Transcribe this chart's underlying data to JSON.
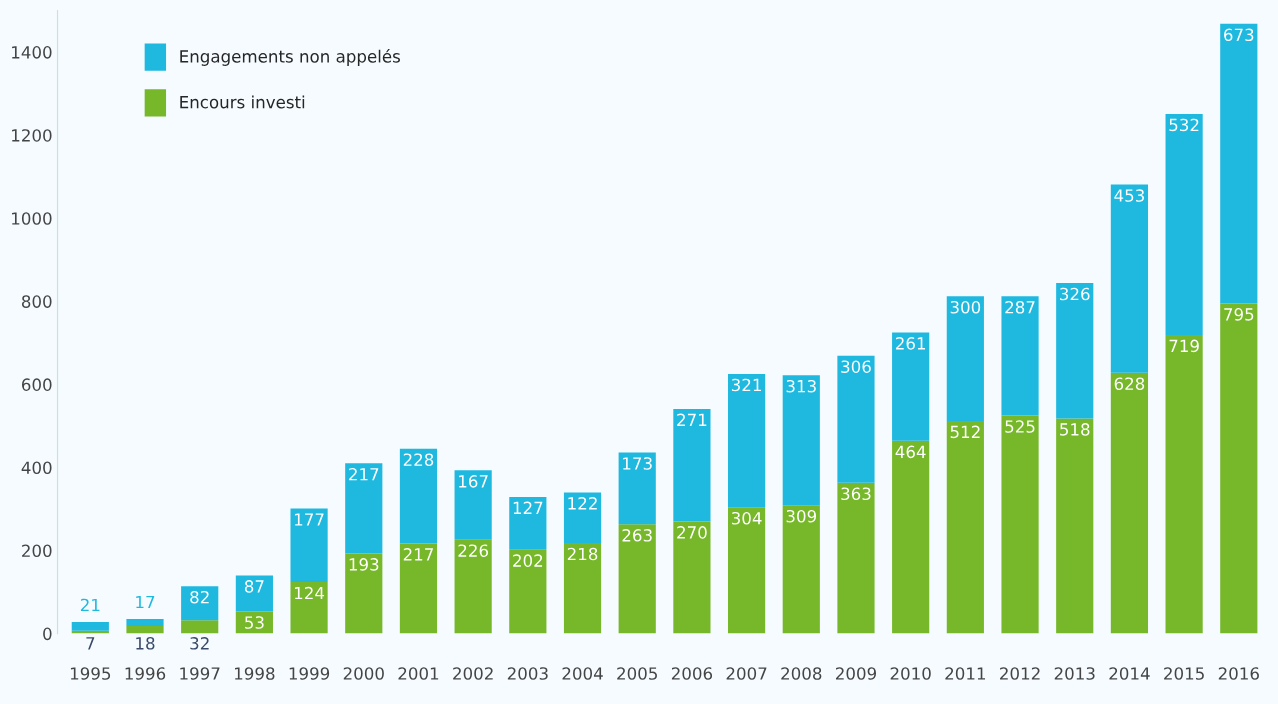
{
  "chart_data": {
    "type": "bar",
    "stacked": true,
    "data_labels": true,
    "legend": "top left",
    "grid": false,
    "categories": [
      "1995",
      "1996",
      "1997",
      "1998",
      "1999",
      "2000",
      "2001",
      "2002",
      "2003",
      "2004",
      "2005",
      "2006",
      "2007",
      "2008",
      "2009",
      "2010",
      "2011",
      "2012",
      "2013",
      "2014",
      "2015",
      "2016"
    ],
    "series": [
      {
        "name": "Encours investi",
        "color": "#76b82a",
        "values": [
          7,
          18,
          32,
          53,
          124,
          193,
          217,
          226,
          202,
          218,
          263,
          270,
          304,
          309,
          363,
          464,
          512,
          525,
          518,
          628,
          719,
          795
        ]
      },
      {
        "name": "Engagements non appelés",
        "color": "#1fb9e0",
        "values": [
          21,
          17,
          82,
          87,
          177,
          217,
          228,
          167,
          127,
          122,
          173,
          271,
          321,
          313,
          306,
          261,
          300,
          287,
          326,
          453,
          532,
          673
        ]
      }
    ],
    "ylim": [
      0,
      1500
    ],
    "yticks": [
      0,
      200,
      400,
      600,
      800,
      1000,
      1200,
      1400
    ]
  }
}
